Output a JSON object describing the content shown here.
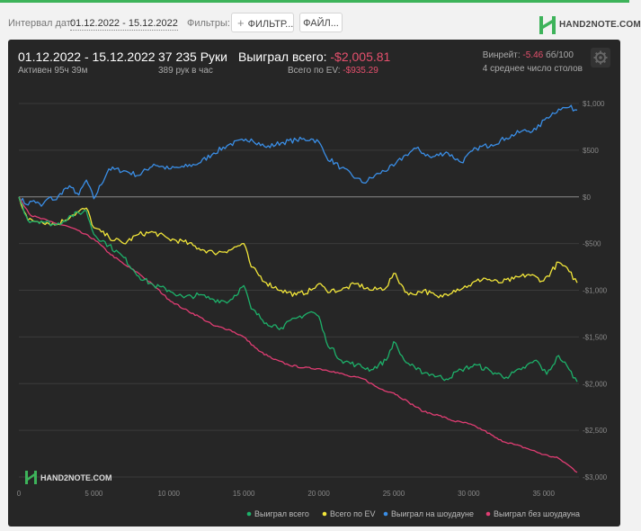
{
  "toolbar": {
    "interval_label": "Интервал дат:",
    "date_range": "01.12.2022 - 15.12.2022",
    "filters_label": "Фильтры:",
    "filter_button": "ФИЛЬТР...",
    "file_button": "ФАЙЛ...",
    "logo_text": "HAND2NOTE.COM"
  },
  "summary": {
    "date_range": "01.12.2022 - 15.12.2022",
    "active": "Активен 95ч 39м",
    "hands": "37 235 Руки",
    "hands_per_hour": "389 рук в час",
    "won_label": "Выиграл всего:",
    "won_value": "-$2,005.81",
    "ev_label": "Всего по EV:",
    "ev_value": "-$935.29",
    "winrate_label": "Винрейт:",
    "winrate_value": "-5.46",
    "winrate_unit": "бб/100",
    "tables": "4 среднее число столов"
  },
  "watermark": "HAND2NOTE.COM",
  "colors": {
    "total": "#1db16a",
    "ev": "#f2e63a",
    "showdown": "#3a8ee6",
    "non_showdown": "#e03d73"
  },
  "chart_data": {
    "type": "line",
    "xlim": [
      0,
      37235
    ],
    "ylim": [
      -3000,
      1000
    ],
    "x_ticks": [
      0,
      5000,
      10000,
      15000,
      20000,
      25000,
      30000,
      35000
    ],
    "x_tick_labels": [
      "0",
      "5 000",
      "10 000",
      "15 000",
      "20 000",
      "25 000",
      "30 000",
      "35 000"
    ],
    "y_ticks": [
      1000,
      500,
      0,
      -500,
      -1000,
      -1500,
      -2000,
      -2500,
      -3000
    ],
    "y_tick_labels": [
      "$1,000",
      "$500",
      "$0",
      "-$500",
      "-$1,000",
      "-$1,500",
      "-$2,000",
      "-$2,500",
      "-$3,000"
    ],
    "legend_position": "bottom-right",
    "series": [
      {
        "key": "total",
        "name": "Выиграл всего",
        "points": [
          [
            0,
            0
          ],
          [
            600,
            -250
          ],
          [
            1500,
            -260
          ],
          [
            2500,
            -300
          ],
          [
            3500,
            -200
          ],
          [
            4500,
            -150
          ],
          [
            5000,
            -400
          ],
          [
            6000,
            -520
          ],
          [
            7000,
            -650
          ],
          [
            8000,
            -850
          ],
          [
            9000,
            -950
          ],
          [
            10000,
            -1000
          ],
          [
            11000,
            -1080
          ],
          [
            12000,
            -1050
          ],
          [
            13000,
            -1100
          ],
          [
            14000,
            -1120
          ],
          [
            15000,
            -950
          ],
          [
            15500,
            -1200
          ],
          [
            16500,
            -1350
          ],
          [
            17500,
            -1400
          ],
          [
            18500,
            -1300
          ],
          [
            19500,
            -1230
          ],
          [
            20000,
            -1280
          ],
          [
            20500,
            -1550
          ],
          [
            21500,
            -1750
          ],
          [
            22500,
            -1800
          ],
          [
            23500,
            -1850
          ],
          [
            24500,
            -1750
          ],
          [
            25000,
            -1550
          ],
          [
            25700,
            -1750
          ],
          [
            26500,
            -1850
          ],
          [
            27500,
            -1900
          ],
          [
            28500,
            -1950
          ],
          [
            29500,
            -1850
          ],
          [
            30500,
            -1800
          ],
          [
            31500,
            -1870
          ],
          [
            32500,
            -1930
          ],
          [
            33500,
            -1850
          ],
          [
            34500,
            -1750
          ],
          [
            35200,
            -1900
          ],
          [
            36000,
            -1700
          ],
          [
            36700,
            -1850
          ],
          [
            37235,
            -1980
          ]
        ]
      },
      {
        "key": "ev",
        "name": "Всего по EV",
        "points": [
          [
            0,
            0
          ],
          [
            600,
            -250
          ],
          [
            1500,
            -260
          ],
          [
            2500,
            -300
          ],
          [
            3500,
            -200
          ],
          [
            4500,
            -120
          ],
          [
            5000,
            -330
          ],
          [
            6000,
            -430
          ],
          [
            7000,
            -500
          ],
          [
            8000,
            -400
          ],
          [
            9000,
            -380
          ],
          [
            10000,
            -450
          ],
          [
            11000,
            -480
          ],
          [
            12000,
            -550
          ],
          [
            13000,
            -600
          ],
          [
            14000,
            -570
          ],
          [
            15000,
            -500
          ],
          [
            15500,
            -750
          ],
          [
            16500,
            -920
          ],
          [
            17500,
            -1000
          ],
          [
            18500,
            -1050
          ],
          [
            19500,
            -1000
          ],
          [
            20000,
            -930
          ],
          [
            20500,
            -1000
          ],
          [
            21500,
            -1000
          ],
          [
            22500,
            -930
          ],
          [
            23500,
            -1000
          ],
          [
            24500,
            -970
          ],
          [
            25000,
            -820
          ],
          [
            26000,
            -1050
          ],
          [
            27000,
            -1000
          ],
          [
            28000,
            -1080
          ],
          [
            29000,
            -1000
          ],
          [
            30000,
            -950
          ],
          [
            31000,
            -870
          ],
          [
            32000,
            -920
          ],
          [
            33000,
            -880
          ],
          [
            34000,
            -830
          ],
          [
            35000,
            -900
          ],
          [
            36000,
            -700
          ],
          [
            36700,
            -800
          ],
          [
            37235,
            -920
          ]
        ]
      },
      {
        "key": "showdown",
        "name": "Выиграл на шоудауне",
        "points": [
          [
            0,
            0
          ],
          [
            500,
            -80
          ],
          [
            1000,
            -40
          ],
          [
            1500,
            -100
          ],
          [
            2000,
            -10
          ],
          [
            2500,
            -30
          ],
          [
            3000,
            80
          ],
          [
            3500,
            100
          ],
          [
            4000,
            20
          ],
          [
            4500,
            180
          ],
          [
            5000,
            -20
          ],
          [
            6000,
            300
          ],
          [
            7000,
            280
          ],
          [
            8000,
            230
          ],
          [
            9000,
            350
          ],
          [
            10000,
            300
          ],
          [
            11000,
            320
          ],
          [
            12000,
            360
          ],
          [
            13000,
            470
          ],
          [
            14000,
            560
          ],
          [
            15000,
            600
          ],
          [
            15500,
            620
          ],
          [
            16500,
            530
          ],
          [
            17500,
            580
          ],
          [
            18500,
            610
          ],
          [
            19500,
            620
          ],
          [
            20000,
            590
          ],
          [
            20500,
            430
          ],
          [
            21500,
            310
          ],
          [
            22500,
            200
          ],
          [
            23000,
            150
          ],
          [
            24000,
            250
          ],
          [
            25000,
            330
          ],
          [
            25800,
            450
          ],
          [
            26500,
            520
          ],
          [
            27500,
            420
          ],
          [
            28500,
            480
          ],
          [
            29500,
            370
          ],
          [
            30500,
            520
          ],
          [
            31500,
            560
          ],
          [
            32500,
            630
          ],
          [
            33500,
            700
          ],
          [
            34500,
            720
          ],
          [
            35200,
            850
          ],
          [
            36000,
            940
          ],
          [
            36700,
            960
          ],
          [
            37235,
            930
          ]
        ]
      },
      {
        "key": "non_showdown",
        "name": "Выиграл без шоудауна",
        "points": [
          [
            0,
            0
          ],
          [
            800,
            -200
          ],
          [
            2000,
            -260
          ],
          [
            3500,
            -330
          ],
          [
            5000,
            -450
          ],
          [
            6000,
            -600
          ],
          [
            7000,
            -720
          ],
          [
            8000,
            -820
          ],
          [
            9000,
            -950
          ],
          [
            10000,
            -1100
          ],
          [
            11000,
            -1200
          ],
          [
            12000,
            -1280
          ],
          [
            13000,
            -1380
          ],
          [
            14000,
            -1420
          ],
          [
            15000,
            -1500
          ],
          [
            16000,
            -1650
          ],
          [
            17000,
            -1740
          ],
          [
            18000,
            -1800
          ],
          [
            19000,
            -1830
          ],
          [
            20000,
            -1840
          ],
          [
            21000,
            -1870
          ],
          [
            22000,
            -1920
          ],
          [
            23000,
            -1950
          ],
          [
            24000,
            -2050
          ],
          [
            25000,
            -2100
          ],
          [
            26000,
            -2200
          ],
          [
            27000,
            -2300
          ],
          [
            28000,
            -2340
          ],
          [
            29000,
            -2400
          ],
          [
            30000,
            -2430
          ],
          [
            31000,
            -2500
          ],
          [
            32000,
            -2600
          ],
          [
            33000,
            -2650
          ],
          [
            34000,
            -2700
          ],
          [
            35000,
            -2760
          ],
          [
            36000,
            -2800
          ],
          [
            36700,
            -2880
          ],
          [
            37235,
            -2950
          ]
        ]
      }
    ]
  }
}
